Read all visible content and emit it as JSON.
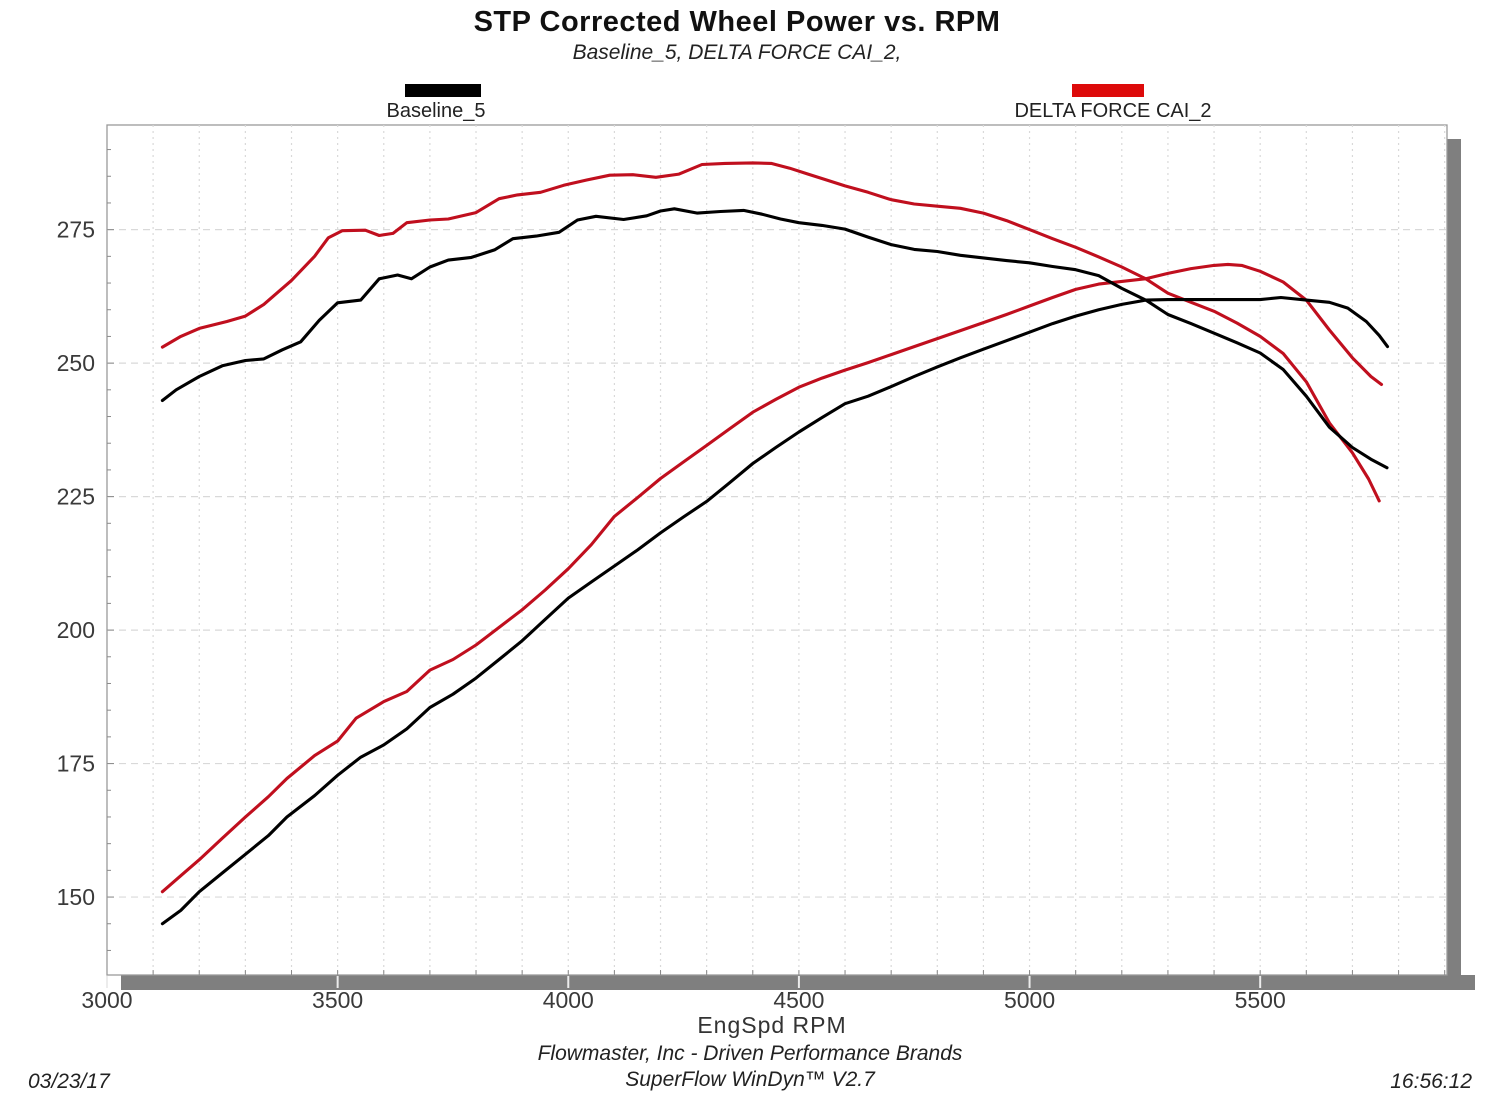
{
  "header": {
    "title": "STP Corrected Wheel Power vs. RPM",
    "subtitle": "Baseline_5, DELTA FORCE CAI_2,"
  },
  "legend": [
    {
      "label": "Baseline_5",
      "swatch_color": "#000000"
    },
    {
      "label": "DELTA FORCE CAI_2",
      "swatch_color": "#dd0a0a"
    }
  ],
  "footer": {
    "company": "Flowmaster, Inc - Driven Performance Brands",
    "software": "SuperFlow WinDyn™ V2.7",
    "date": "03/23/17",
    "time": "16:56:12"
  },
  "colors": {
    "baseline_curve": "#000000",
    "delta_curve": "#c00f1e",
    "grid": "#d9d9d9",
    "plot_border": "#9a9a9a",
    "shadow": "#7f7f7f",
    "tick": "#8a8a8a",
    "tick_label": "#3a3a3a"
  },
  "chart_data": {
    "type": "line",
    "title": "STP Corrected Wheel Power vs. RPM",
    "subtitle": "Baseline_5, DELTA FORCE CAI_2,",
    "xlabel": "EngSpd RPM",
    "ylabel": "",
    "xlim": [
      3000,
      5905
    ],
    "ylim": [
      135.4,
      294.6
    ],
    "x_ticks": [
      3000,
      3500,
      4000,
      4500,
      5000,
      5500
    ],
    "y_ticks": [
      150,
      175,
      200,
      225,
      250,
      275
    ],
    "x_minor_step": 100,
    "grid": "dotted minor verticals every 100 RPM, dashed horizontals every 25",
    "legend_position": "above plot, left and right",
    "series": [
      {
        "name": "Baseline_5",
        "curve": "upper",
        "color": "#000000",
        "points": [
          [
            3120,
            243
          ],
          [
            3150,
            245
          ],
          [
            3200,
            247.5
          ],
          [
            3250,
            249.5
          ],
          [
            3300,
            250.5
          ],
          [
            3340,
            250.8
          ],
          [
            3380,
            252.5
          ],
          [
            3420,
            254
          ],
          [
            3460,
            258
          ],
          [
            3500,
            261.3
          ],
          [
            3550,
            261.8
          ],
          [
            3590,
            265.8
          ],
          [
            3630,
            266.5
          ],
          [
            3660,
            265.8
          ],
          [
            3700,
            268
          ],
          [
            3740,
            269.3
          ],
          [
            3790,
            269.8
          ],
          [
            3840,
            271.2
          ],
          [
            3880,
            273.3
          ],
          [
            3930,
            273.8
          ],
          [
            3980,
            274.5
          ],
          [
            4020,
            276.8
          ],
          [
            4060,
            277.5
          ],
          [
            4120,
            276.9
          ],
          [
            4170,
            277.6
          ],
          [
            4200,
            278.5
          ],
          [
            4230,
            278.9
          ],
          [
            4280,
            278.1
          ],
          [
            4330,
            278.4
          ],
          [
            4380,
            278.6
          ],
          [
            4420,
            277.9
          ],
          [
            4460,
            277
          ],
          [
            4500,
            276.3
          ],
          [
            4550,
            275.8
          ],
          [
            4600,
            275.1
          ],
          [
            4650,
            273.6
          ],
          [
            4700,
            272.2
          ],
          [
            4750,
            271.3
          ],
          [
            4800,
            270.9
          ],
          [
            4850,
            270.2
          ],
          [
            4900,
            269.7
          ],
          [
            4950,
            269.2
          ],
          [
            5000,
            268.8
          ],
          [
            5050,
            268.1
          ],
          [
            5100,
            267.5
          ],
          [
            5150,
            266.4
          ],
          [
            5200,
            264
          ],
          [
            5252,
            261.8
          ],
          [
            5300,
            259.1
          ],
          [
            5350,
            257.4
          ],
          [
            5400,
            255.6
          ],
          [
            5450,
            253.8
          ],
          [
            5500,
            251.9
          ],
          [
            5550,
            248.8
          ],
          [
            5600,
            243.8
          ],
          [
            5650,
            238
          ],
          [
            5700,
            234.2
          ],
          [
            5740,
            232
          ],
          [
            5775,
            230.4
          ]
        ]
      },
      {
        "name": "DELTA FORCE CAI_2",
        "curve": "upper",
        "color": "#c00f1e",
        "points": [
          [
            3120,
            253
          ],
          [
            3160,
            255
          ],
          [
            3200,
            256.5
          ],
          [
            3260,
            257.8
          ],
          [
            3300,
            258.8
          ],
          [
            3340,
            261
          ],
          [
            3400,
            265.5
          ],
          [
            3450,
            270
          ],
          [
            3480,
            273.5
          ],
          [
            3510,
            274.8
          ],
          [
            3560,
            274.9
          ],
          [
            3590,
            273.9
          ],
          [
            3620,
            274.3
          ],
          [
            3650,
            276.3
          ],
          [
            3700,
            276.8
          ],
          [
            3740,
            277
          ],
          [
            3800,
            278.2
          ],
          [
            3850,
            280.8
          ],
          [
            3890,
            281.5
          ],
          [
            3940,
            282
          ],
          [
            3990,
            283.3
          ],
          [
            4040,
            284.3
          ],
          [
            4090,
            285.2
          ],
          [
            4140,
            285.3
          ],
          [
            4190,
            284.8
          ],
          [
            4240,
            285.4
          ],
          [
            4290,
            287.2
          ],
          [
            4340,
            287.4
          ],
          [
            4400,
            287.5
          ],
          [
            4440,
            287.4
          ],
          [
            4480,
            286.5
          ],
          [
            4520,
            285.4
          ],
          [
            4560,
            284.3
          ],
          [
            4600,
            283.2
          ],
          [
            4650,
            282
          ],
          [
            4700,
            280.6
          ],
          [
            4750,
            279.8
          ],
          [
            4800,
            279.4
          ],
          [
            4850,
            279
          ],
          [
            4900,
            278.1
          ],
          [
            4950,
            276.7
          ],
          [
            5000,
            275
          ],
          [
            5050,
            273.3
          ],
          [
            5100,
            271.7
          ],
          [
            5150,
            269.9
          ],
          [
            5200,
            268
          ],
          [
            5252,
            265.8
          ],
          [
            5300,
            263.1
          ],
          [
            5350,
            261.4
          ],
          [
            5400,
            259.7
          ],
          [
            5450,
            257.5
          ],
          [
            5500,
            255
          ],
          [
            5550,
            251.8
          ],
          [
            5600,
            246.5
          ],
          [
            5650,
            238.8
          ],
          [
            5700,
            233.2
          ],
          [
            5735,
            228.3
          ],
          [
            5758,
            224.2
          ]
        ]
      },
      {
        "name": "DELTA FORCE CAI_2",
        "curve": "lower",
        "color": "#c00f1e",
        "points": [
          [
            3120,
            151
          ],
          [
            3160,
            154
          ],
          [
            3200,
            157
          ],
          [
            3250,
            161
          ],
          [
            3300,
            165
          ],
          [
            3350,
            168.8
          ],
          [
            3390,
            172.2
          ],
          [
            3450,
            176.5
          ],
          [
            3500,
            179.2
          ],
          [
            3540,
            183.5
          ],
          [
            3600,
            186.6
          ],
          [
            3650,
            188.5
          ],
          [
            3700,
            192.5
          ],
          [
            3750,
            194.5
          ],
          [
            3800,
            197.2
          ],
          [
            3850,
            200.5
          ],
          [
            3900,
            203.8
          ],
          [
            3950,
            207.5
          ],
          [
            4000,
            211.5
          ],
          [
            4050,
            216
          ],
          [
            4100,
            221.3
          ],
          [
            4150,
            224.8
          ],
          [
            4200,
            228.4
          ],
          [
            4250,
            231.5
          ],
          [
            4300,
            234.6
          ],
          [
            4350,
            237.7
          ],
          [
            4400,
            240.8
          ],
          [
            4450,
            243.2
          ],
          [
            4500,
            245.5
          ],
          [
            4550,
            247.2
          ],
          [
            4600,
            248.7
          ],
          [
            4650,
            250.1
          ],
          [
            4700,
            251.6
          ],
          [
            4750,
            253.1
          ],
          [
            4800,
            254.6
          ],
          [
            4850,
            256.1
          ],
          [
            4900,
            257.6
          ],
          [
            4950,
            259.1
          ],
          [
            5000,
            260.7
          ],
          [
            5050,
            262.3
          ],
          [
            5100,
            263.8
          ],
          [
            5150,
            264.8
          ],
          [
            5200,
            265.3
          ],
          [
            5252,
            265.8
          ],
          [
            5300,
            266.8
          ],
          [
            5350,
            267.7
          ],
          [
            5400,
            268.3
          ],
          [
            5430,
            268.5
          ],
          [
            5460,
            268.3
          ],
          [
            5500,
            267.2
          ],
          [
            5550,
            265.2
          ],
          [
            5600,
            261.8
          ],
          [
            5650,
            256.2
          ],
          [
            5700,
            251
          ],
          [
            5740,
            247.5
          ],
          [
            5763,
            246
          ]
        ]
      },
      {
        "name": "Baseline_5",
        "curve": "lower",
        "color": "#000000",
        "points": [
          [
            3120,
            145
          ],
          [
            3160,
            147.5
          ],
          [
            3200,
            151
          ],
          [
            3250,
            154.5
          ],
          [
            3300,
            158
          ],
          [
            3350,
            161.5
          ],
          [
            3390,
            165
          ],
          [
            3450,
            169
          ],
          [
            3500,
            172.8
          ],
          [
            3550,
            176.2
          ],
          [
            3600,
            178.5
          ],
          [
            3650,
            181.5
          ],
          [
            3700,
            185.5
          ],
          [
            3750,
            188
          ],
          [
            3800,
            191
          ],
          [
            3850,
            194.5
          ],
          [
            3900,
            198
          ],
          [
            3950,
            202
          ],
          [
            4000,
            206
          ],
          [
            4050,
            209
          ],
          [
            4100,
            212
          ],
          [
            4150,
            215
          ],
          [
            4200,
            218.2
          ],
          [
            4250,
            221.2
          ],
          [
            4300,
            224.1
          ],
          [
            4350,
            227.6
          ],
          [
            4400,
            231.2
          ],
          [
            4450,
            234.2
          ],
          [
            4500,
            237.1
          ],
          [
            4550,
            239.8
          ],
          [
            4600,
            242.4
          ],
          [
            4650,
            243.8
          ],
          [
            4700,
            245.6
          ],
          [
            4750,
            247.5
          ],
          [
            4800,
            249.3
          ],
          [
            4850,
            251
          ],
          [
            4900,
            252.6
          ],
          [
            4950,
            254.2
          ],
          [
            5000,
            255.8
          ],
          [
            5050,
            257.4
          ],
          [
            5100,
            258.8
          ],
          [
            5150,
            260
          ],
          [
            5200,
            261
          ],
          [
            5252,
            261.8
          ],
          [
            5300,
            261.9
          ],
          [
            5400,
            261.9
          ],
          [
            5500,
            261.9
          ],
          [
            5545,
            262.3
          ],
          [
            5600,
            261.8
          ],
          [
            5650,
            261.4
          ],
          [
            5690,
            260.3
          ],
          [
            5730,
            257.8
          ],
          [
            5758,
            255.2
          ],
          [
            5776,
            253.1
          ]
        ]
      }
    ]
  }
}
